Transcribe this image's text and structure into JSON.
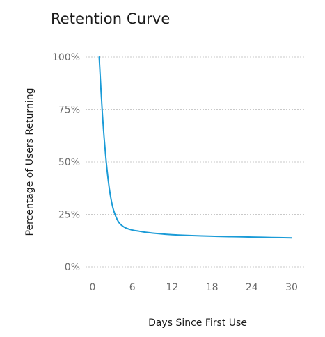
{
  "chart_data": {
    "type": "line",
    "title": "Retention Curve",
    "xlabel": "Days Since First Use",
    "ylabel": "Percentage of Users Returning",
    "xlim": [
      0,
      30
    ],
    "ylim": [
      0,
      100
    ],
    "x_ticks": [
      0,
      6,
      12,
      18,
      24,
      30
    ],
    "y_ticks": [
      0,
      25,
      50,
      75,
      100
    ],
    "y_tick_format": "%",
    "grid": "horizontal dotted",
    "line_color": "#1a9bd7",
    "series": [
      {
        "x": [
          1,
          1.5,
          2,
          2.5,
          3,
          3.5,
          4,
          4.5,
          5,
          6,
          7,
          8,
          10,
          12,
          15,
          18,
          21,
          24,
          27,
          30
        ],
        "values": [
          100,
          72,
          52,
          38,
          29,
          24,
          21,
          19.5,
          18.5,
          17.5,
          17,
          16.5,
          15.8,
          15.3,
          14.9,
          14.6,
          14.4,
          14.2,
          14.0,
          13.8
        ]
      }
    ]
  }
}
